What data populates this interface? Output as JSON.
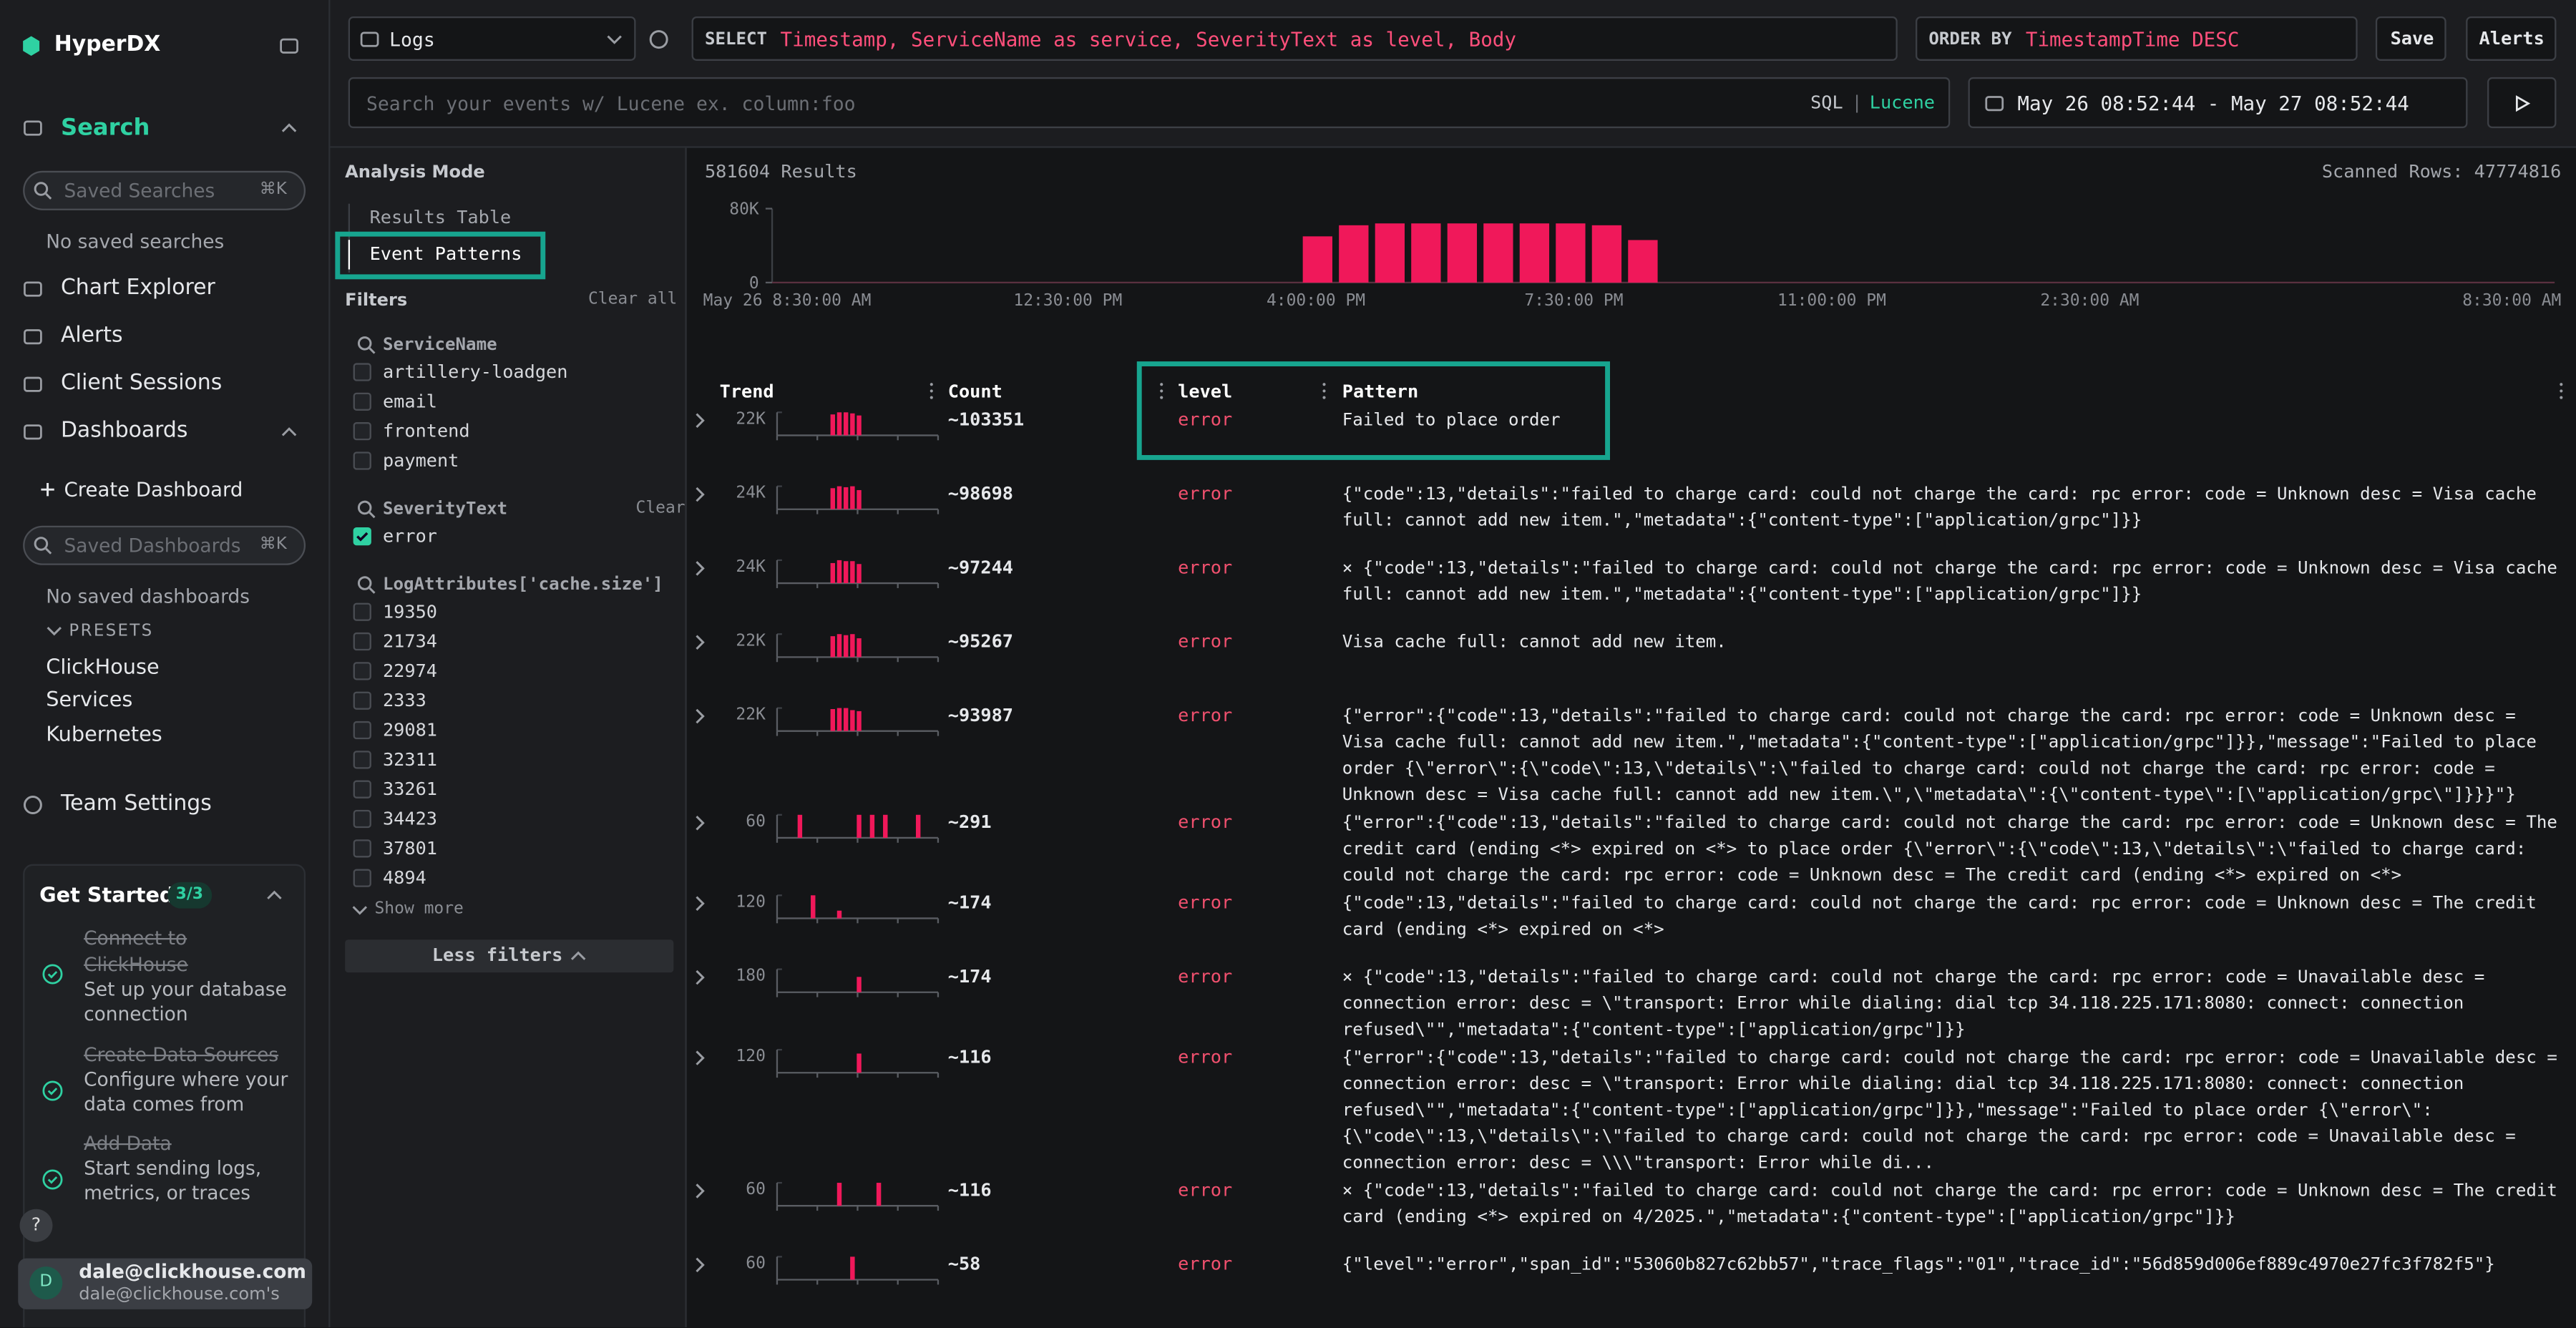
{
  "sidebar": {
    "brand": "HyperDX",
    "search": "Search",
    "saved_searches_placeholder": "Saved Searches",
    "search_shortcut": "⌘K",
    "no_saved_searches": "No saved searches",
    "nav": [
      "Chart Explorer",
      "Alerts",
      "Client Sessions"
    ],
    "dashboards": "Dashboards",
    "create_dashboard": "Create Dashboard",
    "saved_dashboards_placeholder": "Saved Dashboards",
    "dashboards_shortcut": "⌘K",
    "no_saved_dashboards": "No saved dashboards",
    "presets": "PRESETS",
    "preset_items": [
      "ClickHouse",
      "Services",
      "Kubernetes"
    ],
    "team_settings": "Team Settings",
    "get_started": {
      "title": "Get Started",
      "progress": "3/3",
      "steps": [
        {
          "title": "Connect to ClickHouse",
          "description": "Set up your database connection"
        },
        {
          "title": "Create Data Sources",
          "description": "Configure where your data comes from"
        },
        {
          "title": "Add Data",
          "description": "Start sending logs, metrics, or traces"
        }
      ]
    },
    "help": "?",
    "user": {
      "avatar": "D",
      "email": "dale@clickhouse.com",
      "team": "dale@clickhouse.com's"
    }
  },
  "toolbar": {
    "source": "Logs",
    "select_keyword": "SELECT",
    "select": "Timestamp, ServiceName as service, SeverityText as level, Body",
    "order_keyword": "ORDER BY",
    "order": "TimestampTime DESC",
    "save": "Save",
    "alerts": "Alerts",
    "search_placeholder": "Search your events w/ Lucene ex. column:foo",
    "sql": "SQL",
    "separator": "|",
    "lucene": "Lucene",
    "time_range": "May 26 08:52:44 - May 27 08:52:44"
  },
  "analysis": {
    "title": "Analysis Mode",
    "modes": [
      "Results Table",
      "Event Patterns"
    ]
  },
  "filters": {
    "title": "Filters",
    "clear_all": "Clear all",
    "groups": [
      {
        "name": "ServiceName",
        "items": [
          "artillery-loadgen",
          "email",
          "frontend",
          "payment"
        ],
        "checked": [
          false,
          false,
          false,
          false
        ]
      },
      {
        "name": "SeverityText",
        "clear": "Clear",
        "items": [
          "error"
        ],
        "checked": [
          true
        ]
      },
      {
        "name": "LogAttributes['cache.size']",
        "items": [
          "19350",
          "21734",
          "22974",
          "2333",
          "29081",
          "32311",
          "33261",
          "34423",
          "37801",
          "4894"
        ],
        "checked": [
          false,
          false,
          false,
          false,
          false,
          false,
          false,
          false,
          false,
          false
        ]
      }
    ],
    "show_more": "Show more",
    "less_filters": "Less filters"
  },
  "results": {
    "count": "581604 Results",
    "scanned": "Scanned Rows: 47774816",
    "histogram": {
      "color": "#f0185a",
      "ylim": [
        0,
        80000
      ],
      "yticks": [
        0,
        {
          "value": 80000,
          "label": "80K"
        }
      ],
      "values": [
        50000,
        62000,
        64000,
        64000,
        64000,
        64000,
        64000,
        64000,
        62000,
        46000
      ],
      "x_labels": [
        "May 26 8:30:00 AM",
        "12:30:00 PM",
        "4:00:00 PM",
        "7:30:00 PM",
        "11:00:00 PM",
        "2:30:00 AM",
        "8:30:00 AM"
      ]
    }
  },
  "patterns": {
    "headers": [
      "Trend",
      "Count",
      "level",
      "Pattern"
    ],
    "rows": [
      {
        "trend_max": {
          "value": 22000,
          "label": "22K"
        },
        "trend": [
          0,
          0,
          0,
          0,
          0,
          0,
          0,
          0,
          20000,
          22000,
          22000,
          21000,
          19000,
          0,
          0,
          0,
          0,
          0,
          0,
          0,
          0,
          0,
          0,
          0
        ],
        "count": "~103351",
        "level": "error",
        "pattern": "Failed to place order"
      },
      {
        "trend_max": {
          "value": 24000,
          "label": "24K"
        },
        "trend": [
          0,
          0,
          0,
          0,
          0,
          0,
          0,
          0,
          22000,
          24000,
          23000,
          24000,
          20000,
          0,
          0,
          0,
          0,
          0,
          0,
          0,
          0,
          0,
          0,
          0
        ],
        "count": "~98698",
        "level": "error",
        "pattern": "{\"code\":13,\"details\":\"failed to charge card: could not charge the card: rpc error: code = Unknown desc = Visa cache full: cannot add new item.\",\"metadata\":{\"content-type\":[\"application/grpc\"]}}"
      },
      {
        "trend_max": {
          "value": 24000,
          "label": "24K"
        },
        "trend": [
          0,
          0,
          0,
          0,
          0,
          0,
          0,
          0,
          21000,
          24000,
          23000,
          23000,
          20000,
          0,
          0,
          0,
          0,
          0,
          0,
          0,
          0,
          0,
          0,
          0
        ],
        "count": "~97244",
        "level": "error",
        "pattern": "× {\"code\":13,\"details\":\"failed to charge card: could not charge the card: rpc error: code = Unknown desc = Visa cache full: cannot add new item.\",\"metadata\":{\"content-type\":[\"application/grpc\"]}}"
      },
      {
        "trend_max": {
          "value": 22000,
          "label": "22K"
        },
        "trend": [
          0,
          0,
          0,
          0,
          0,
          0,
          0,
          0,
          20000,
          22000,
          21000,
          22000,
          18000,
          0,
          0,
          0,
          0,
          0,
          0,
          0,
          0,
          0,
          0,
          0
        ],
        "count": "~95267",
        "level": "error",
        "pattern": "Visa cache full: cannot add new item."
      },
      {
        "trend_max": {
          "value": 22000,
          "label": "22K"
        },
        "trend": [
          0,
          0,
          0,
          0,
          0,
          0,
          0,
          0,
          21000,
          22000,
          22000,
          20000,
          19000,
          0,
          0,
          0,
          0,
          0,
          0,
          0,
          0,
          0,
          0,
          0
        ],
        "count": "~93987",
        "level": "error",
        "pattern": "{\"error\":{\"code\":13,\"details\":\"failed to charge card: could not charge the card: rpc error: code = Unknown desc = Visa cache full: cannot add new item.\",\"metadata\":{\"content-type\":[\"application/grpc\"]}},\"message\":\"Failed to place order {\\\"error\\\":{\\\"code\\\":13,\\\"details\\\":\\\"failed to charge card: could not charge the card: rpc error: code = Unknown desc = Visa cache full: cannot add new item.\\\",\\\"metadata\\\":{\\\"content-type\\\":[\\\"application/grpc\\\"]}}}\"}"
      },
      {
        "trend_max": 60,
        "trend": [
          0,
          0,
          0,
          60,
          0,
          0,
          0,
          0,
          0,
          0,
          0,
          0,
          60,
          0,
          60,
          0,
          60,
          0,
          0,
          0,
          0,
          60,
          0,
          0
        ],
        "count": "~291",
        "level": "error",
        "pattern": "{\"error\":{\"code\":13,\"details\":\"failed to charge card: could not charge the card: rpc error: code = Unknown desc = The credit card (ending <*> expired on <*> to place order {\\\"error\\\":{\\\"code\\\":13,\\\"details\\\":\\\"failed to charge card: could not charge the card: rpc error: code = Unknown desc = The credit card (ending <*> expired on <*>"
      },
      {
        "trend_max": 120,
        "trend": [
          0,
          0,
          0,
          0,
          0,
          120,
          0,
          0,
          0,
          40,
          0,
          0,
          0,
          0,
          0,
          0,
          0,
          0,
          0,
          0,
          0,
          0,
          0,
          0
        ],
        "count": "~174",
        "level": "error",
        "pattern": "{\"code\":13,\"details\":\"failed to charge card: could not charge the card: rpc error: code = Unknown desc = The credit card (ending <*> expired on <*>"
      },
      {
        "trend_max": 180,
        "trend": [
          0,
          0,
          0,
          0,
          0,
          0,
          0,
          0,
          0,
          0,
          0,
          0,
          120,
          0,
          0,
          0,
          0,
          0,
          0,
          0,
          0,
          0,
          0,
          0
        ],
        "count": "~174",
        "level": "error",
        "pattern": "× {\"code\":13,\"details\":\"failed to charge card: could not charge the card: rpc error: code = Unavailable desc = connection error: desc = \\\"transport: Error while dialing: dial tcp 34.118.225.171:8080: connect: connection refused\\\"\",\"metadata\":{\"content-type\":[\"application/grpc\"]}}"
      },
      {
        "trend_max": 120,
        "trend": [
          0,
          0,
          0,
          0,
          0,
          0,
          0,
          0,
          0,
          0,
          0,
          0,
          100,
          0,
          0,
          0,
          0,
          0,
          0,
          0,
          0,
          0,
          0,
          0
        ],
        "count": "~116",
        "level": "error",
        "pattern": "{\"error\":{\"code\":13,\"details\":\"failed to charge card: could not charge the card: rpc error: code = Unavailable desc = connection error: desc = \\\"transport: Error while dialing: dial tcp 34.118.225.171:8080: connect: connection refused\\\"\",\"metadata\":{\"content-type\":[\"application/grpc\"]}},\"message\":\"Failed to place order {\\\"error\\\":{\\\"code\\\":13,\\\"details\\\":\\\"failed to charge card: could not charge the card: rpc error: code = Unavailable desc = connection error: desc = \\\\\\\"transport: Error while di..."
      },
      {
        "trend_max": 60,
        "trend": [
          0,
          0,
          0,
          0,
          0,
          0,
          0,
          0,
          0,
          60,
          0,
          0,
          0,
          0,
          0,
          60,
          0,
          0,
          0,
          0,
          0,
          0,
          0,
          0
        ],
        "count": "~116",
        "level": "error",
        "pattern": "× {\"code\":13,\"details\":\"failed to charge card: could not charge the card: rpc error: code = Unknown desc = The credit card (ending <*> expired on 4/2025.\",\"metadata\":{\"content-type\":[\"application/grpc\"]}}"
      },
      {
        "trend_max": 60,
        "trend": [
          0,
          0,
          0,
          0,
          0,
          0,
          0,
          0,
          0,
          0,
          0,
          60,
          0,
          0,
          0,
          0,
          0,
          0,
          0,
          0,
          0,
          0,
          0,
          0
        ],
        "count": "~58",
        "level": "error",
        "pattern": "{\"level\":\"error\",\"span_id\":\"53060b827c62bb57\",\"trace_flags\":\"01\",\"trace_id\":\"56d859d006ef889c4970e27fc3f782f5\"}"
      }
    ]
  }
}
